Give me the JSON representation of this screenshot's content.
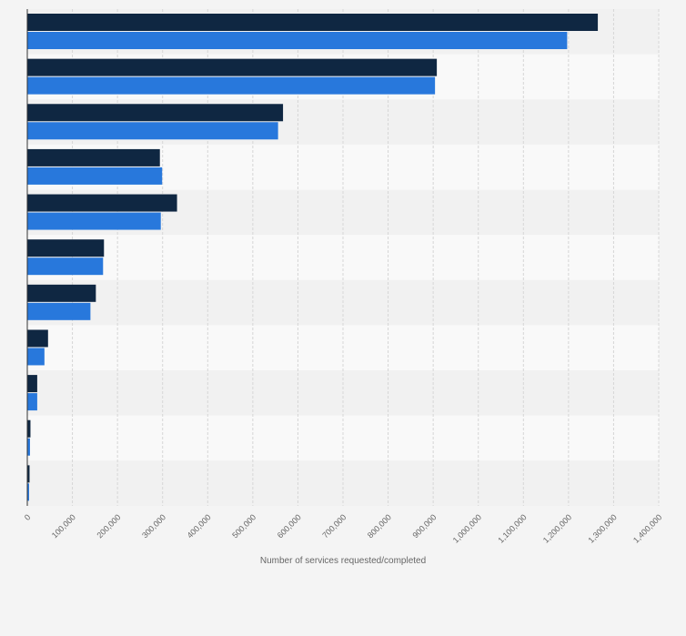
{
  "chart_data": {
    "type": "bar",
    "orientation": "horizontal",
    "categories": [
      "",
      "",
      "",
      "",
      "",
      "",
      "",
      "",
      "",
      "",
      ""
    ],
    "series": [
      {
        "color": "#0f2742",
        "values": [
          1265000,
          908000,
          567000,
          294000,
          332000,
          170000,
          152000,
          46000,
          22000,
          7000,
          5000
        ]
      },
      {
        "color": "#2878dc",
        "values": [
          1197000,
          904000,
          556000,
          299000,
          296000,
          168000,
          140000,
          38000,
          22000,
          6000,
          4000
        ]
      }
    ],
    "xlabel": "Number of services requested/completed",
    "xlim": [
      0,
      1400000
    ],
    "x_ticks": [
      "0",
      "100,000",
      "200,000",
      "300,000",
      "400,000",
      "500,000",
      "600,000",
      "700,000",
      "800,000",
      "900,000",
      "1,000,000",
      "1,100,000",
      "1,200,000",
      "1,300,000",
      "1,400,000"
    ],
    "grid": true,
    "legend": "none"
  }
}
